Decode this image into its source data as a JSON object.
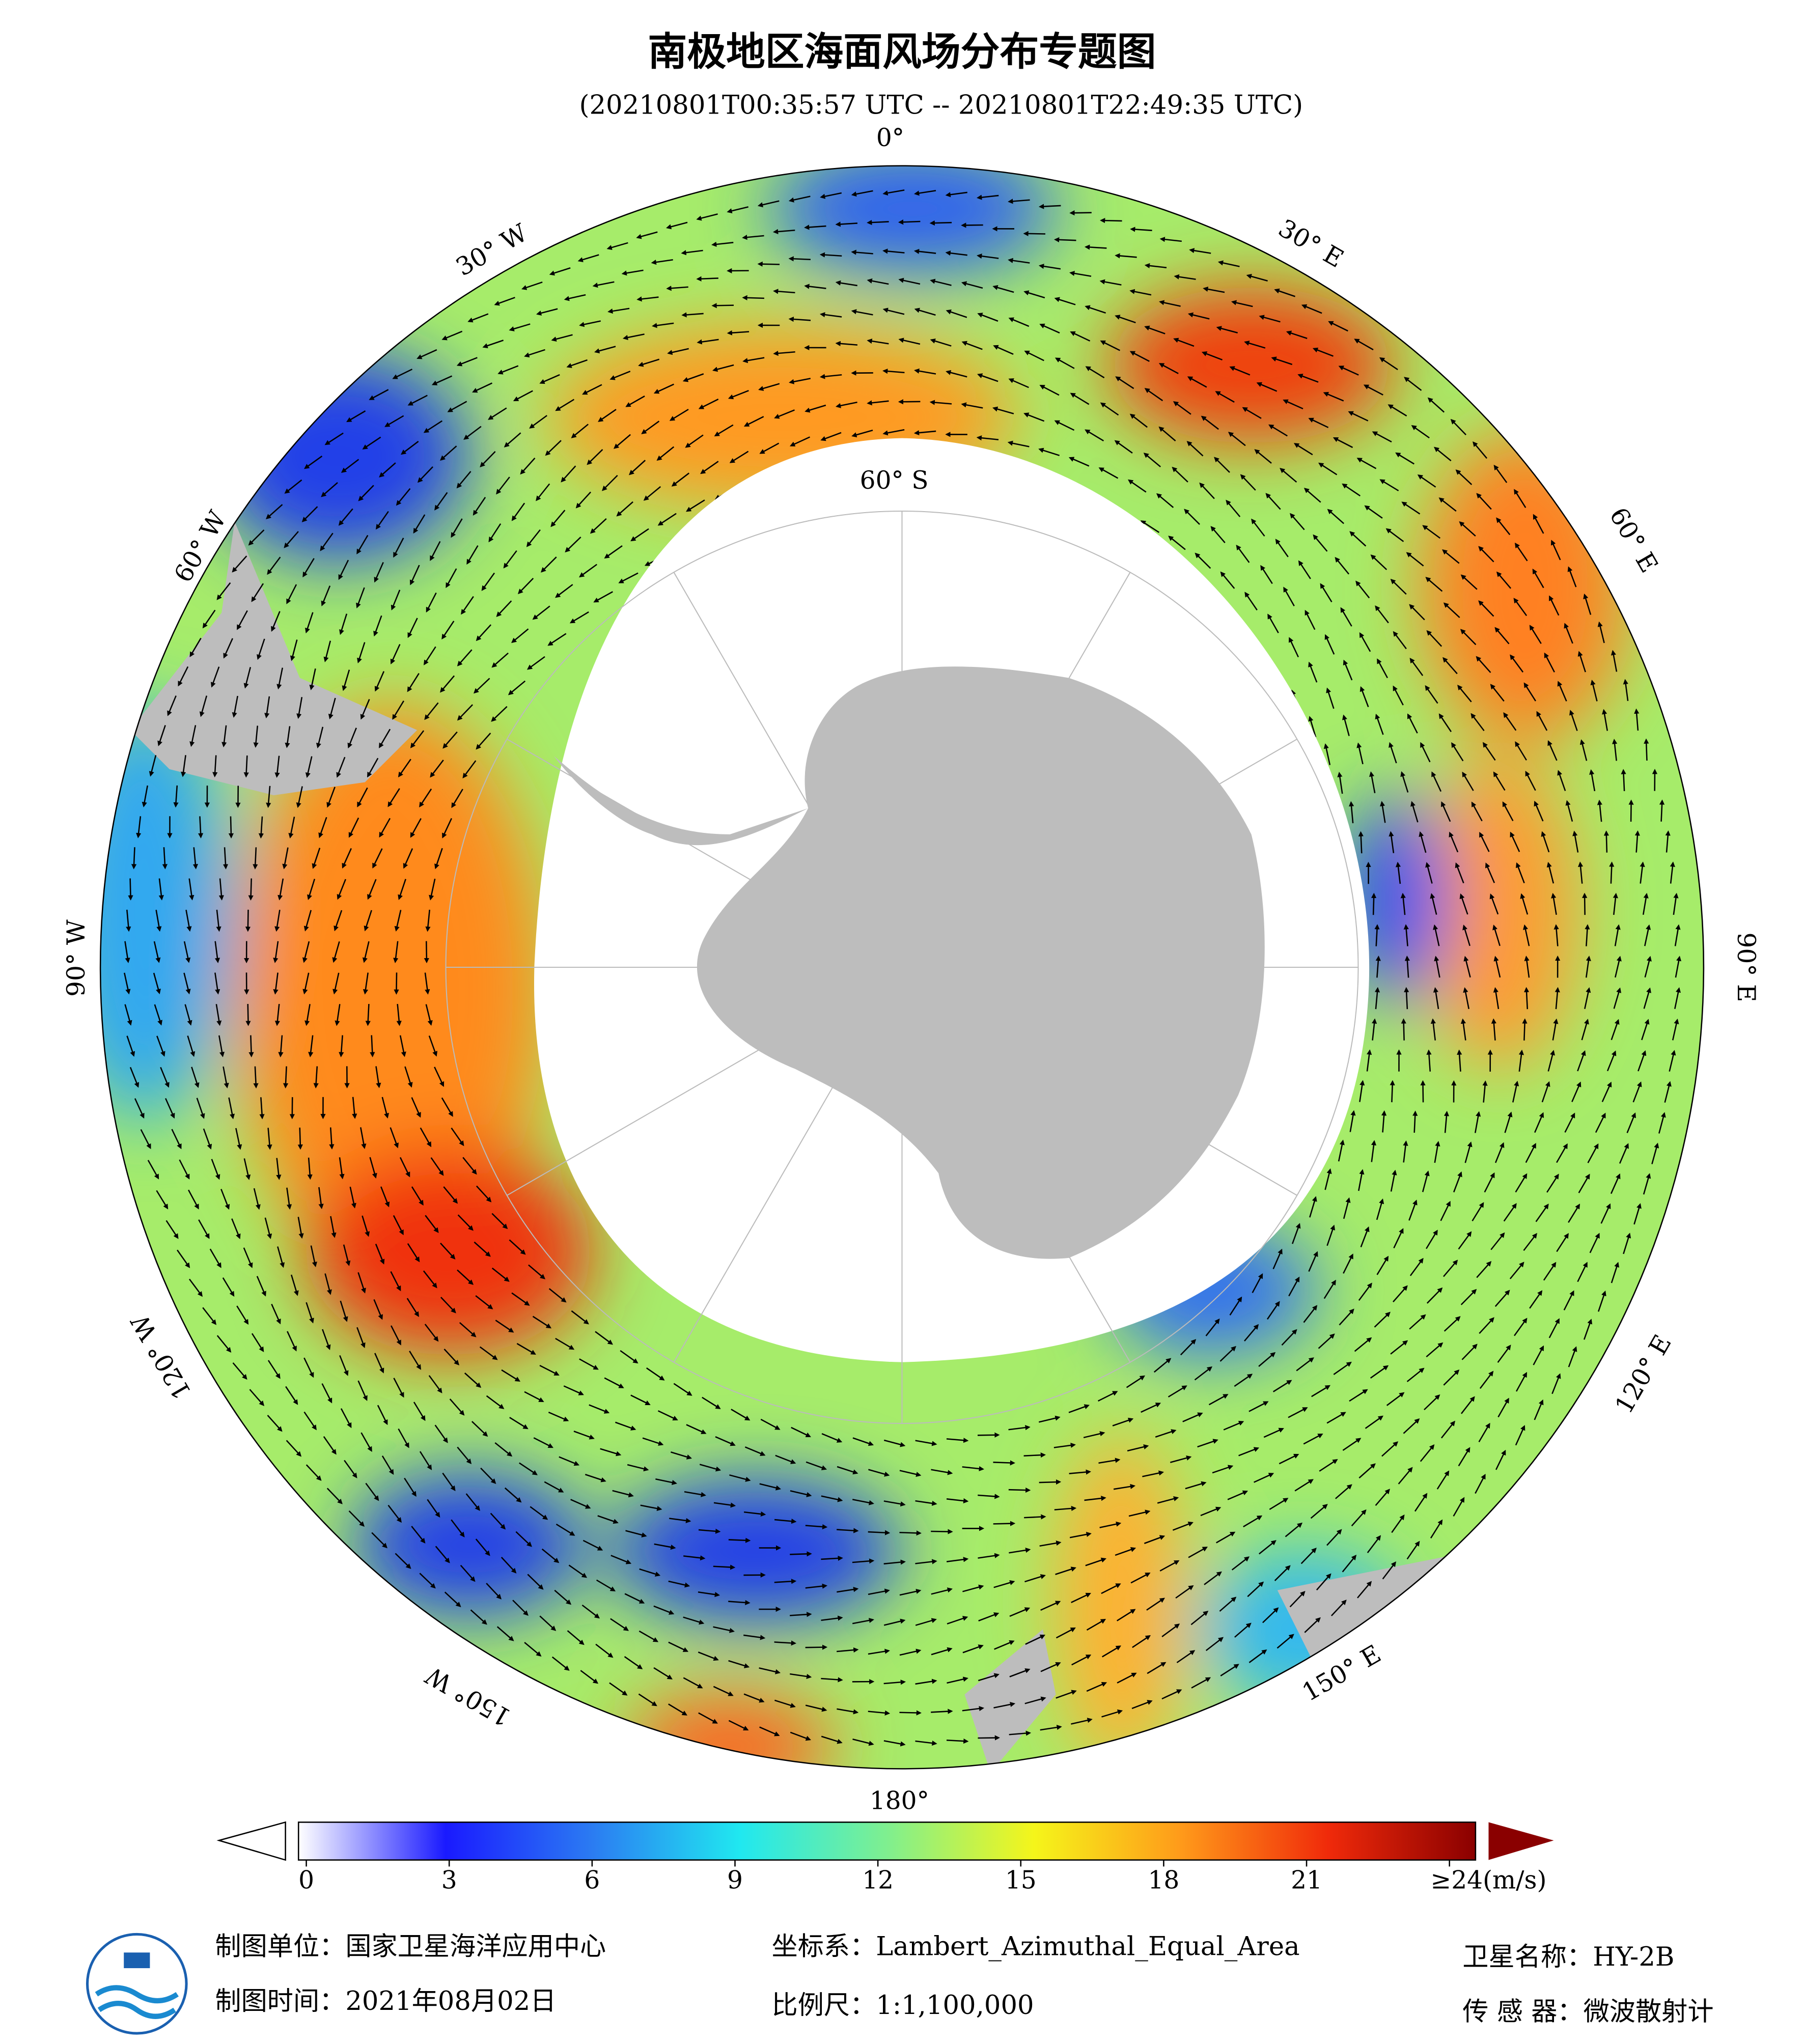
{
  "header": {
    "title": "南极地区海面风场分布专题图",
    "subtitle": "(20210801T00:35:57 UTC -- 20210801T22:49:35 UTC)"
  },
  "map": {
    "longitude_labels": [
      "0°",
      "30° E",
      "60° E",
      "90° E",
      "120° E",
      "150° E",
      "180°",
      "150° W",
      "120° W",
      "90° W",
      "60° W",
      "30° W"
    ],
    "latitude_label": "60° S"
  },
  "colorbar": {
    "range": [
      0,
      24
    ],
    "ticks": [
      0,
      3,
      6,
      9,
      12,
      15,
      18,
      21,
      {
        "value": 24,
        "label": "≥24(m/s)"
      }
    ]
  },
  "footer": {
    "producer": "制图单位：国家卫星海洋应用中心",
    "date": "制图时间：2021年08月02日",
    "projection": "坐标系：Lambert_Azimuthal_Equal_Area",
    "scale": "比例尺：1:1,100,000",
    "satellite": "卫星名称：HY-2B",
    "sensor": "传 感 器：微波散射计"
  }
}
